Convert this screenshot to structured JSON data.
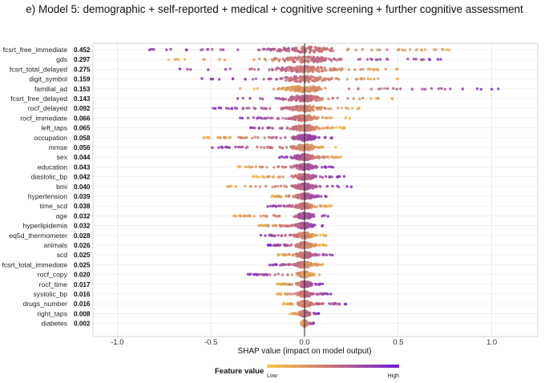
{
  "title": "e) Model 5: demographic + self-reported + medical + cognitive screening + further cognitive assessment",
  "chart_data": {
    "type": "scatter",
    "subtype": "shap-beeswarm",
    "xlabel": "SHAP value (impact on model output)",
    "xlim": [
      -1.2,
      1.3
    ],
    "xticks": [
      -1.0,
      -0.5,
      0.0,
      0.5,
      1.0
    ],
    "xtick_labels": [
      "-1.0",
      "-0.5",
      "0.0",
      "0.5",
      "1.0"
    ],
    "grid": true,
    "legend": {
      "title": "Feature value",
      "low_label": "Low",
      "high_label": "High",
      "position": "bottom-center",
      "low_color": "#f5c842",
      "mid_color": "#c8707a",
      "high_color": "#6a1fd6"
    },
    "features": [
      {
        "name": "fcsrt_free_immediate",
        "importance": "0.452",
        "min": -0.85,
        "max": 0.92,
        "spread": 0.17,
        "dir": -1
      },
      {
        "name": "gds",
        "importance": "0.297",
        "min": -0.75,
        "max": 0.8,
        "spread": 0.17,
        "dir": 1
      },
      {
        "name": "fcsrt_total_delayed",
        "importance": "0.275",
        "min": -0.72,
        "max": 0.55,
        "spread": 0.16,
        "dir": -1
      },
      {
        "name": "digit_symbol",
        "importance": "0.159",
        "min": -0.55,
        "max": 0.5,
        "spread": 0.12,
        "dir": -1
      },
      {
        "name": "familial_ad",
        "importance": "0.153",
        "min": -0.35,
        "max": 1.05,
        "spread": 0.1,
        "dir": 1
      },
      {
        "name": "fcsrt_free_delayed",
        "importance": "0.143",
        "min": -0.4,
        "max": 0.5,
        "spread": 0.1,
        "dir": -1
      },
      {
        "name": "rocf_delayed",
        "importance": "0.092",
        "min": -0.5,
        "max": 0.3,
        "spread": 0.08,
        "dir": -1
      },
      {
        "name": "rocf_immediate",
        "importance": "0.066",
        "min": -0.35,
        "max": 0.25,
        "spread": 0.06,
        "dir": -1
      },
      {
        "name": "left_taps",
        "importance": "0.065",
        "min": -0.3,
        "max": 0.22,
        "spread": 0.06,
        "dir": -1
      },
      {
        "name": "occupation",
        "importance": "0.058",
        "min": -0.55,
        "max": 0.15,
        "spread": 0.06,
        "dir": 1
      },
      {
        "name": "mmse",
        "importance": "0.056",
        "min": -0.52,
        "max": 0.2,
        "spread": 0.06,
        "dir": -1
      },
      {
        "name": "sex",
        "importance": "0.044",
        "min": -0.15,
        "max": 0.22,
        "spread": 0.05,
        "dir": -1
      },
      {
        "name": "education",
        "importance": "0.043",
        "min": -0.38,
        "max": 0.18,
        "spread": 0.05,
        "dir": 1
      },
      {
        "name": "diastolic_bp",
        "importance": "0.042",
        "min": -0.28,
        "max": 0.22,
        "spread": 0.05,
        "dir": 1
      },
      {
        "name": "bmi",
        "importance": "0.040",
        "min": -0.42,
        "max": 0.25,
        "spread": 0.05,
        "dir": 1
      },
      {
        "name": "hypertension",
        "importance": "0.039",
        "min": -0.18,
        "max": 0.12,
        "spread": 0.04,
        "dir": 1
      },
      {
        "name": "time_scd",
        "importance": "0.038",
        "min": -0.2,
        "max": 0.15,
        "spread": 0.04,
        "dir": -1
      },
      {
        "name": "age",
        "importance": "0.032",
        "min": -0.38,
        "max": 0.15,
        "spread": 0.04,
        "dir": 1
      },
      {
        "name": "hyperlipidemia",
        "importance": "0.032",
        "min": -0.25,
        "max": 0.1,
        "spread": 0.04,
        "dir": 1
      },
      {
        "name": "eq5d_thermometer",
        "importance": "0.028",
        "min": -0.25,
        "max": 0.12,
        "spread": 0.04,
        "dir": -1
      },
      {
        "name": "animals",
        "importance": "0.026",
        "min": -0.2,
        "max": 0.12,
        "spread": 0.04,
        "dir": -1
      },
      {
        "name": "scd",
        "importance": "0.025",
        "min": -0.15,
        "max": 0.15,
        "spread": 0.04,
        "dir": 1
      },
      {
        "name": "fcsrt_total_immediate",
        "importance": "0.025",
        "min": -0.2,
        "max": 0.12,
        "spread": 0.04,
        "dir": -1
      },
      {
        "name": "rocf_copy",
        "importance": "0.020",
        "min": -0.32,
        "max": 0.1,
        "spread": 0.03,
        "dir": -1
      },
      {
        "name": "rocf_time",
        "importance": "0.017",
        "min": -0.15,
        "max": 0.1,
        "spread": 0.03,
        "dir": 1
      },
      {
        "name": "systolic_bp",
        "importance": "0.016",
        "min": -0.15,
        "max": 0.15,
        "spread": 0.03,
        "dir": 1
      },
      {
        "name": "drugs_number",
        "importance": "0.016",
        "min": -0.12,
        "max": 0.22,
        "spread": 0.03,
        "dir": 1
      },
      {
        "name": "right_taps",
        "importance": "0.008",
        "min": -0.08,
        "max": 0.08,
        "spread": 0.02,
        "dir": 1
      },
      {
        "name": "diabetes",
        "importance": "0.002",
        "min": -0.02,
        "max": 0.05,
        "spread": 0.01,
        "dir": 1
      }
    ]
  }
}
